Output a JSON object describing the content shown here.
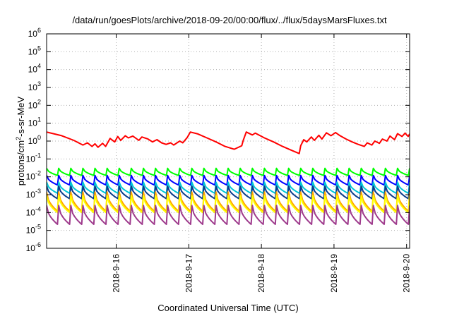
{
  "chart_data": {
    "type": "line",
    "title": "/data/run/goesPlots/archive/2018-09-20/00:00/flux/../flux/5daysMarsFluxes.txt",
    "xlabel": "Coordinated Universal Time (UTC)",
    "ylabel": "protons/cm2-s-sr-MeV",
    "y_scale": "log",
    "ylim": [
      1e-06,
      1000000.0
    ],
    "xlim": [
      "2018-09-15 01:00",
      "2018-09-20 01:00"
    ],
    "x_unit": "days",
    "x_ticks": [
      "2018-9-16",
      "2018-9-17",
      "2018-9-18",
      "2018-9-19",
      "2018-9-20"
    ],
    "y_ticks": [
      {
        "base": "10",
        "exp": "-6"
      },
      {
        "base": "10",
        "exp": "-5"
      },
      {
        "base": "10",
        "exp": "-4"
      },
      {
        "base": "10",
        "exp": "-3"
      },
      {
        "base": "10",
        "exp": "-2"
      },
      {
        "base": "10",
        "exp": "-1"
      },
      {
        "base": "10",
        "exp": "0"
      },
      {
        "base": "10",
        "exp": "1"
      },
      {
        "base": "10",
        "exp": "2"
      },
      {
        "base": "10",
        "exp": "3"
      },
      {
        "base": "10",
        "exp": "4"
      },
      {
        "base": "10",
        "exp": "5"
      },
      {
        "base": "10",
        "exp": "6"
      }
    ],
    "grid": true,
    "series": [
      {
        "color": "#ff0000",
        "x": [
          "2018-09-15 01:00",
          "2018-09-15 06:00",
          "2018-09-15 10:00",
          "2018-09-15 13:00",
          "2018-09-15 14:30",
          "2018-09-15 16:00",
          "2018-09-15 17:00",
          "2018-09-15 18:00",
          "2018-09-15 19:30",
          "2018-09-15 20:30",
          "2018-09-15 22:00",
          "2018-09-15 23:30",
          "2018-09-16 00:30",
          "2018-09-16 01:30",
          "2018-09-16 03:00",
          "2018-09-16 04:00",
          "2018-09-16 05:30",
          "2018-09-16 07:30",
          "2018-09-16 08:30",
          "2018-09-16 10:30",
          "2018-09-16 12:00",
          "2018-09-16 13:30",
          "2018-09-16 15:00",
          "2018-09-16 16:30",
          "2018-09-16 18:00",
          "2018-09-16 19:00",
          "2018-09-16 21:00",
          "2018-09-16 22:00",
          "2018-09-16 23:30",
          "2018-09-17 00:30",
          "2018-09-17 03:00",
          "2018-09-17 06:00",
          "2018-09-17 09:00",
          "2018-09-17 12:00",
          "2018-09-17 15:00",
          "2018-09-17 17:30",
          "2018-09-17 18:00",
          "2018-09-17 19:00",
          "2018-09-17 21:00",
          "2018-09-17 22:00",
          "2018-09-18 01:00",
          "2018-09-18 04:00",
          "2018-09-18 07:00",
          "2018-09-18 10:00",
          "2018-09-18 12:30",
          "2018-09-18 13:00",
          "2018-09-18 14:00",
          "2018-09-18 15:00",
          "2018-09-18 16:30",
          "2018-09-18 17:30",
          "2018-09-18 19:00",
          "2018-09-18 20:00",
          "2018-09-18 21:30",
          "2018-09-18 23:00",
          "2018-09-19 00:30",
          "2018-09-19 02:00",
          "2018-09-19 04:00",
          "2018-09-19 06:00",
          "2018-09-19 08:00",
          "2018-09-19 10:00",
          "2018-09-19 11:00",
          "2018-09-19 12:30",
          "2018-09-19 13:30",
          "2018-09-19 15:00",
          "2018-09-19 16:00",
          "2018-09-19 17:30",
          "2018-09-19 18:30",
          "2018-09-19 20:00",
          "2018-09-19 21:00",
          "2018-09-19 22:30",
          "2018-09-19 23:30",
          "2018-09-20 00:30",
          "2018-09-20 01:00"
        ],
        "values": [
          3.2,
          2.0,
          1.1,
          0.6,
          0.8,
          0.5,
          0.7,
          0.45,
          0.75,
          0.5,
          1.4,
          0.9,
          1.8,
          1.1,
          2.0,
          1.5,
          1.9,
          1.1,
          1.7,
          1.3,
          0.9,
          1.2,
          0.8,
          0.65,
          0.8,
          0.6,
          1.0,
          0.8,
          1.6,
          3.2,
          2.5,
          1.5,
          0.9,
          0.5,
          0.35,
          0.55,
          1.1,
          3.2,
          2.2,
          2.8,
          1.5,
          0.9,
          0.5,
          0.3,
          0.2,
          0.55,
          1.2,
          0.9,
          1.7,
          1.1,
          2.1,
          1.3,
          2.9,
          2.0,
          3.0,
          2.0,
          1.3,
          0.9,
          0.65,
          0.5,
          0.8,
          0.6,
          1.0,
          0.75,
          1.3,
          1.0,
          1.9,
          1.2,
          2.6,
          1.8,
          2.8,
          1.8,
          2.5
        ]
      },
      {
        "color": "#00ff00",
        "sawtooth": {
          "count": 30,
          "high": 0.03,
          "low": 0.012
        }
      },
      {
        "color": "#0000ff",
        "sawtooth": {
          "count": 30,
          "high": 0.012,
          "low": 0.0035
        }
      },
      {
        "color": "#00c8d8",
        "sawtooth": {
          "count": 30,
          "high": 0.005,
          "low": 0.0012
        }
      },
      {
        "color": "#0a3c8c",
        "sawtooth": {
          "count": 30,
          "high": 0.003,
          "low": 0.0006
        }
      },
      {
        "color": "#ffa500",
        "sawtooth": {
          "count": 30,
          "high": 0.0014,
          "low": 0.00012
        }
      },
      {
        "color": "#ffff00",
        "sawtooth": {
          "count": 30,
          "high": 0.0009,
          "low": 0.0001
        }
      },
      {
        "color": "#9e3a8c",
        "sawtooth": {
          "count": 30,
          "high": 0.00025,
          "low": 2.2e-05
        }
      }
    ]
  }
}
